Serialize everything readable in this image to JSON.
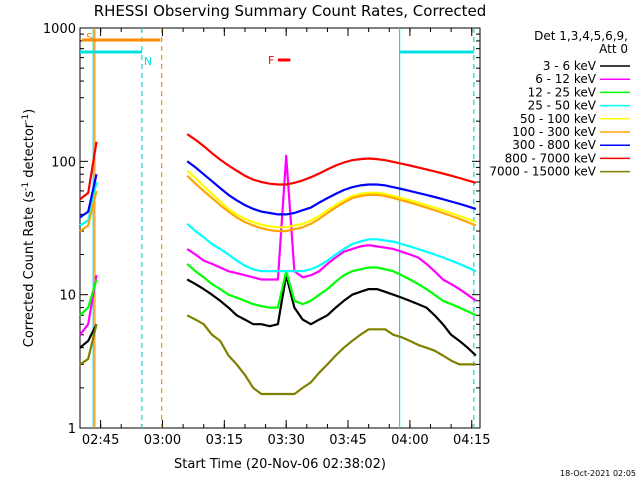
{
  "chart_data": {
    "type": "line",
    "title": "RHESSI Observing Summary Count Rates, Corrected",
    "xlabel": "Start Time (20-Nov-06 02:38:02)",
    "ylabel_main": "Corrected Count Rate (s",
    "ylabel_sup1": "-1",
    "ylabel_mid": " detector",
    "ylabel_sup2": "-1",
    "ylabel_end": ")",
    "yscale": "log",
    "ylim": [
      1,
      1000
    ],
    "xlim_minutes": [
      2.0,
      99.0
    ],
    "x_start": "02:38:02",
    "x_ticks": [
      {
        "label": "02:45",
        "m": 7
      },
      {
        "label": "03:00",
        "m": 22
      },
      {
        "label": "03:15",
        "m": 37
      },
      {
        "label": "03:30",
        "m": 52
      },
      {
        "label": "03:45",
        "m": 67
      },
      {
        "label": "04:00",
        "m": 82
      },
      {
        "label": "04:15",
        "m": 97
      }
    ],
    "y_ticks": [
      {
        "label": "1",
        "v": 1
      },
      {
        "label": "10",
        "v": 10
      },
      {
        "label": "100",
        "v": 100
      },
      {
        "label": "1000",
        "v": 1000
      }
    ],
    "legend_header": [
      "Det 1,3,4,5,6,9,",
      "Att 0"
    ],
    "legend_position": "right",
    "x_sample_minutes": [
      2,
      4,
      6,
      8,
      10,
      12,
      14,
      16,
      18,
      20,
      22,
      24,
      26,
      28,
      30,
      32,
      34,
      36,
      38,
      40,
      42,
      44,
      46,
      48,
      50,
      52,
      54,
      56,
      58,
      60,
      62,
      64,
      66,
      68,
      70,
      72,
      74,
      76,
      78,
      80,
      82,
      84,
      86,
      88,
      90,
      92,
      94,
      96,
      98
    ],
    "series": [
      {
        "name": "3 - 6 keV",
        "color": "#000000",
        "values": [
          4,
          4.5,
          6,
          null,
          null,
          null,
          null,
          null,
          null,
          null,
          null,
          null,
          null,
          13,
          12,
          11,
          10,
          9,
          8,
          7,
          6.5,
          6,
          6,
          5.8,
          6,
          14,
          8,
          6.5,
          6,
          6.5,
          7,
          8,
          9,
          10,
          10.5,
          11,
          11,
          10.5,
          10,
          9.5,
          9,
          8.5,
          8,
          7,
          6,
          5,
          4.5,
          4,
          3.5
        ]
      },
      {
        "name": "6 - 12 keV",
        "color": "#ff00ff",
        "values": [
          5,
          6,
          14,
          null,
          null,
          null,
          null,
          null,
          null,
          null,
          null,
          null,
          null,
          22,
          20,
          18,
          17,
          16,
          15,
          14.5,
          14,
          13.5,
          13,
          13,
          13,
          110,
          15,
          13.5,
          14,
          15,
          17,
          19,
          21,
          22,
          23,
          23.5,
          23,
          22.5,
          22,
          21,
          20,
          19,
          17,
          15,
          13,
          12,
          11,
          10,
          9
        ]
      },
      {
        "name": "12 - 25 keV",
        "color": "#00ff00",
        "values": [
          7,
          8,
          13,
          null,
          null,
          null,
          null,
          null,
          null,
          null,
          null,
          null,
          null,
          17,
          15,
          13.5,
          12,
          11,
          10,
          9.5,
          9,
          8.5,
          8.2,
          8,
          8,
          15,
          9,
          8.5,
          9,
          10,
          11,
          12.5,
          14,
          15,
          15.5,
          16,
          16,
          15.5,
          15,
          14,
          13,
          12,
          11,
          10,
          9,
          8.5,
          8,
          7.5,
          7
        ]
      },
      {
        "name": "25 - 50 keV",
        "color": "#00ffff",
        "values": [
          33,
          36,
          70,
          null,
          null,
          null,
          null,
          null,
          null,
          null,
          null,
          null,
          null,
          34,
          30,
          27,
          24,
          22,
          20,
          18,
          16.5,
          15.5,
          15,
          15,
          15,
          15,
          15,
          15,
          15.5,
          16.5,
          18,
          20,
          22,
          24,
          25,
          26,
          26,
          25.5,
          25,
          24,
          23,
          22,
          21,
          20,
          19,
          18,
          17,
          16,
          15
        ]
      },
      {
        "name": "50 - 100 keV",
        "color": "#ffff00",
        "values": [
          null,
          null,
          null,
          null,
          null,
          null,
          null,
          null,
          null,
          null,
          null,
          null,
          null,
          85,
          75,
          65,
          57,
          50,
          44,
          40,
          37,
          35,
          33.5,
          32.5,
          32,
          32,
          33,
          34,
          36,
          39,
          43,
          47,
          51,
          55,
          57,
          58,
          58,
          57,
          55,
          53,
          51,
          49,
          47,
          45,
          43,
          41,
          39,
          37,
          35
        ]
      },
      {
        "name": "100 - 300 keV",
        "color": "#ffa500",
        "values": [
          30,
          33,
          60,
          null,
          null,
          null,
          null,
          null,
          null,
          null,
          null,
          null,
          null,
          78,
          68,
          60,
          53,
          47,
          42,
          38,
          35,
          33,
          31.5,
          30.5,
          30,
          30,
          31,
          32,
          34,
          37,
          41,
          45,
          49,
          53,
          55,
          56,
          56,
          55,
          53,
          51,
          49,
          47,
          45,
          43,
          41,
          39,
          37,
          35,
          33
        ]
      },
      {
        "name": "300 - 800 keV",
        "color": "#0000ff",
        "values": [
          38,
          42,
          80,
          null,
          null,
          null,
          null,
          null,
          null,
          null,
          null,
          null,
          null,
          100,
          90,
          80,
          71,
          63,
          56,
          51,
          47,
          44,
          42,
          41,
          40,
          40,
          41,
          43,
          45,
          49,
          53,
          57,
          61,
          64,
          66,
          67,
          67,
          66,
          64,
          62,
          60,
          58,
          56,
          54,
          52,
          50,
          48,
          46,
          44
        ]
      },
      {
        "name": "800 - 7000 keV",
        "color": "#ff0000",
        "values": [
          52,
          58,
          140,
          null,
          null,
          null,
          null,
          null,
          null,
          null,
          null,
          null,
          null,
          160,
          145,
          130,
          115,
          103,
          93,
          85,
          78,
          73,
          70,
          68,
          67,
          67,
          69,
          72,
          76,
          81,
          87,
          93,
          98,
          102,
          104,
          105,
          104,
          102,
          99,
          96,
          93,
          90,
          87,
          84,
          81,
          78,
          75,
          72,
          69
        ]
      },
      {
        "name": "7000 - 15000 keV",
        "color": "#808000",
        "values": [
          3,
          3.3,
          6,
          null,
          null,
          null,
          null,
          null,
          null,
          null,
          null,
          null,
          null,
          7,
          6.5,
          6,
          5,
          4.5,
          3.5,
          3,
          2.5,
          2,
          1.8,
          1.8,
          1.8,
          1.8,
          1.8,
          2,
          2.2,
          2.6,
          3,
          3.5,
          4,
          4.5,
          5,
          5.5,
          5.5,
          5.5,
          5,
          4.8,
          4.5,
          4.2,
          4,
          3.8,
          3.5,
          3.2,
          3,
          3,
          3
        ]
      }
    ],
    "markers": [
      {
        "label": "S",
        "color": "#ff8c00",
        "start_m": 2.5,
        "end_m": 21.5,
        "y": 0.97
      },
      {
        "label": "N",
        "color": "#00e0e0",
        "start_m": 2.0,
        "end_m": 17.0,
        "y": 0.94
      },
      {
        "label": "F",
        "color": "#ff0000",
        "start_m": 50.0,
        "end_m": 53.0,
        "y": 0.92
      },
      {
        "label": "",
        "color": "#00e0e0",
        "start_m": 79.5,
        "end_m": 97.5,
        "y": 0.94
      }
    ],
    "vlines": [
      {
        "m": 5.2,
        "color": "#00e0e0",
        "style": "solid"
      },
      {
        "m": 5.6,
        "color": "#ff8c00",
        "style": "solid"
      },
      {
        "m": 17.0,
        "color": "#00e0e0",
        "style": "dashed"
      },
      {
        "m": 21.8,
        "color": "#ff8c00",
        "style": "dashed"
      },
      {
        "m": 79.5,
        "color": "#00e0e0",
        "style": "solid"
      },
      {
        "m": 97.5,
        "color": "#00e0e0",
        "style": "dashed"
      }
    ]
  },
  "footer": {
    "timestamp": "18-Oct-2021 02:05"
  }
}
